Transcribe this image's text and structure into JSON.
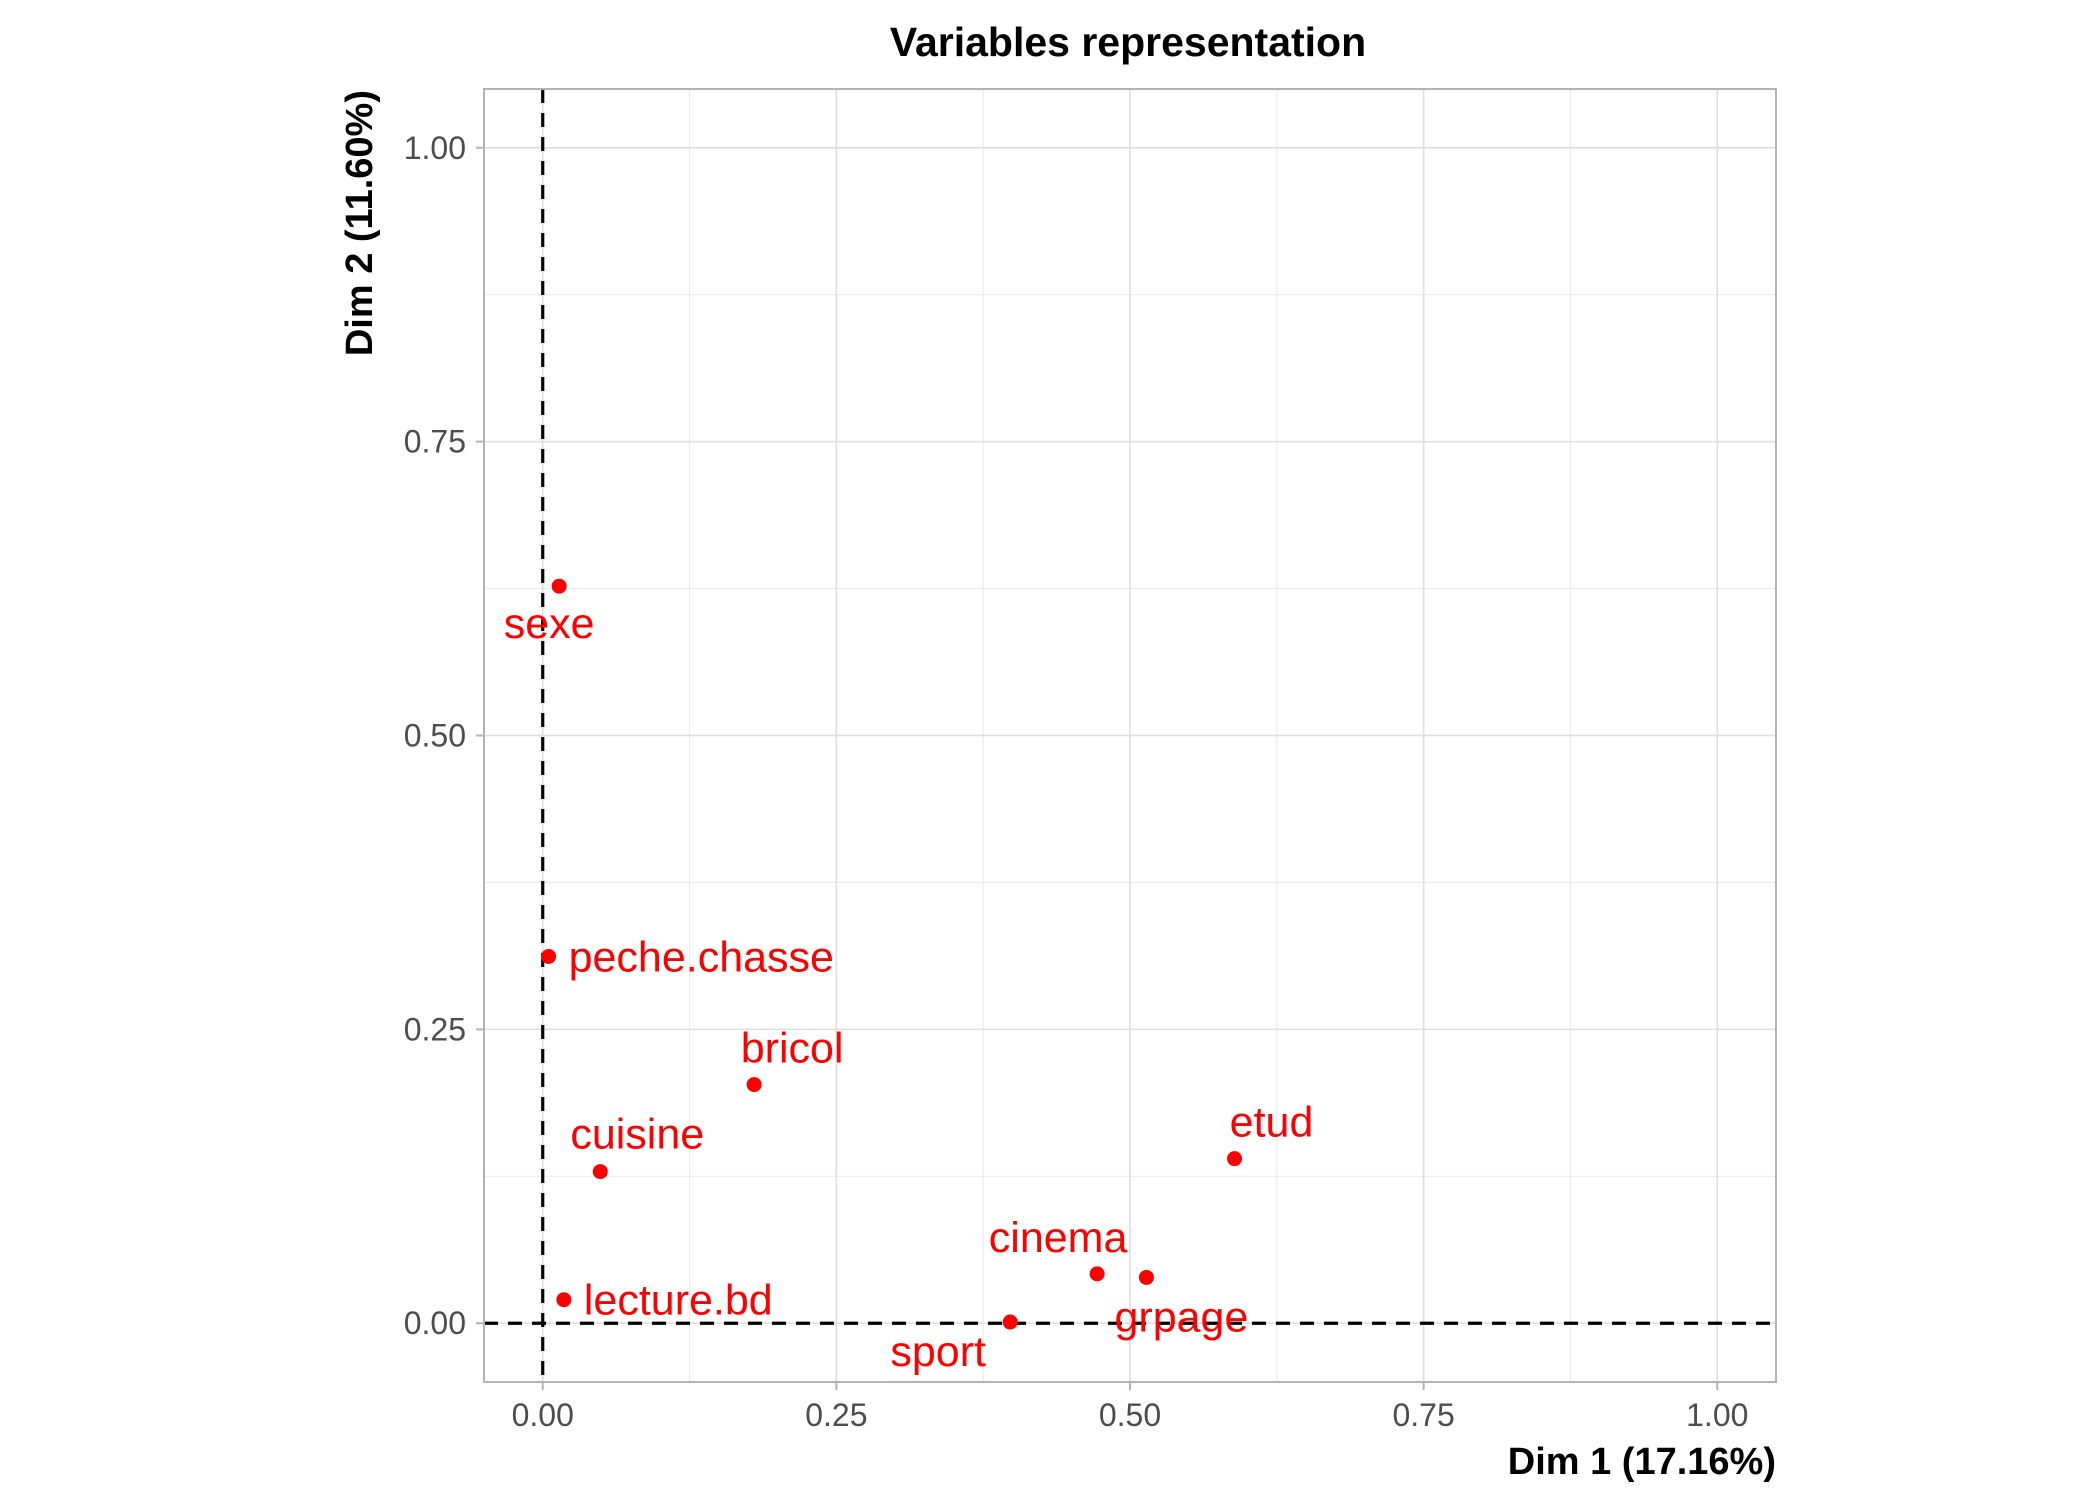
{
  "chart_data": {
    "type": "scatter",
    "title": "Variables representation",
    "xlabel": "Dim 1 (17.16%)",
    "ylabel": "Dim 2 (11.60%)",
    "xlim": [
      -0.05,
      1.05
    ],
    "ylim": [
      -0.05,
      1.05
    ],
    "x_ticks": [
      0,
      0.25,
      0.5,
      0.75,
      1
    ],
    "x_tick_labels": [
      "0.00",
      "0.25",
      "0.50",
      "0.75",
      "1.00"
    ],
    "y_ticks": [
      0,
      0.25,
      0.5,
      0.75,
      1
    ],
    "y_tick_labels": [
      "0.00",
      "0.25",
      "0.50",
      "0.75",
      "1.00"
    ],
    "minor_ticks": [
      0.125,
      0.375,
      0.625,
      0.875
    ],
    "reference_lines": {
      "x": 0,
      "y": 0,
      "style": "dashed"
    },
    "grid": true,
    "point_color": "#ff0000",
    "points": [
      {
        "label": "sexe",
        "x": 0.014,
        "y": 0.627,
        "label_position": "below"
      },
      {
        "label": "peche.chasse",
        "x": 0.005,
        "y": 0.312,
        "label_position": "right"
      },
      {
        "label": "bricol",
        "x": 0.18,
        "y": 0.203,
        "label_position": "above"
      },
      {
        "label": "cuisine",
        "x": 0.049,
        "y": 0.129,
        "label_position": "above"
      },
      {
        "label": "lecture.bd",
        "x": 0.018,
        "y": 0.02,
        "label_position": "right"
      },
      {
        "label": "etud",
        "x": 0.589,
        "y": 0.14,
        "label_position": "above"
      },
      {
        "label": "cinema",
        "x": 0.472,
        "y": 0.042,
        "label_position": "above"
      },
      {
        "label": "grpage",
        "x": 0.514,
        "y": 0.039,
        "label_position": "below"
      },
      {
        "label": "sport",
        "x": 0.398,
        "y": 0.001,
        "label_position": "below-left"
      }
    ]
  }
}
